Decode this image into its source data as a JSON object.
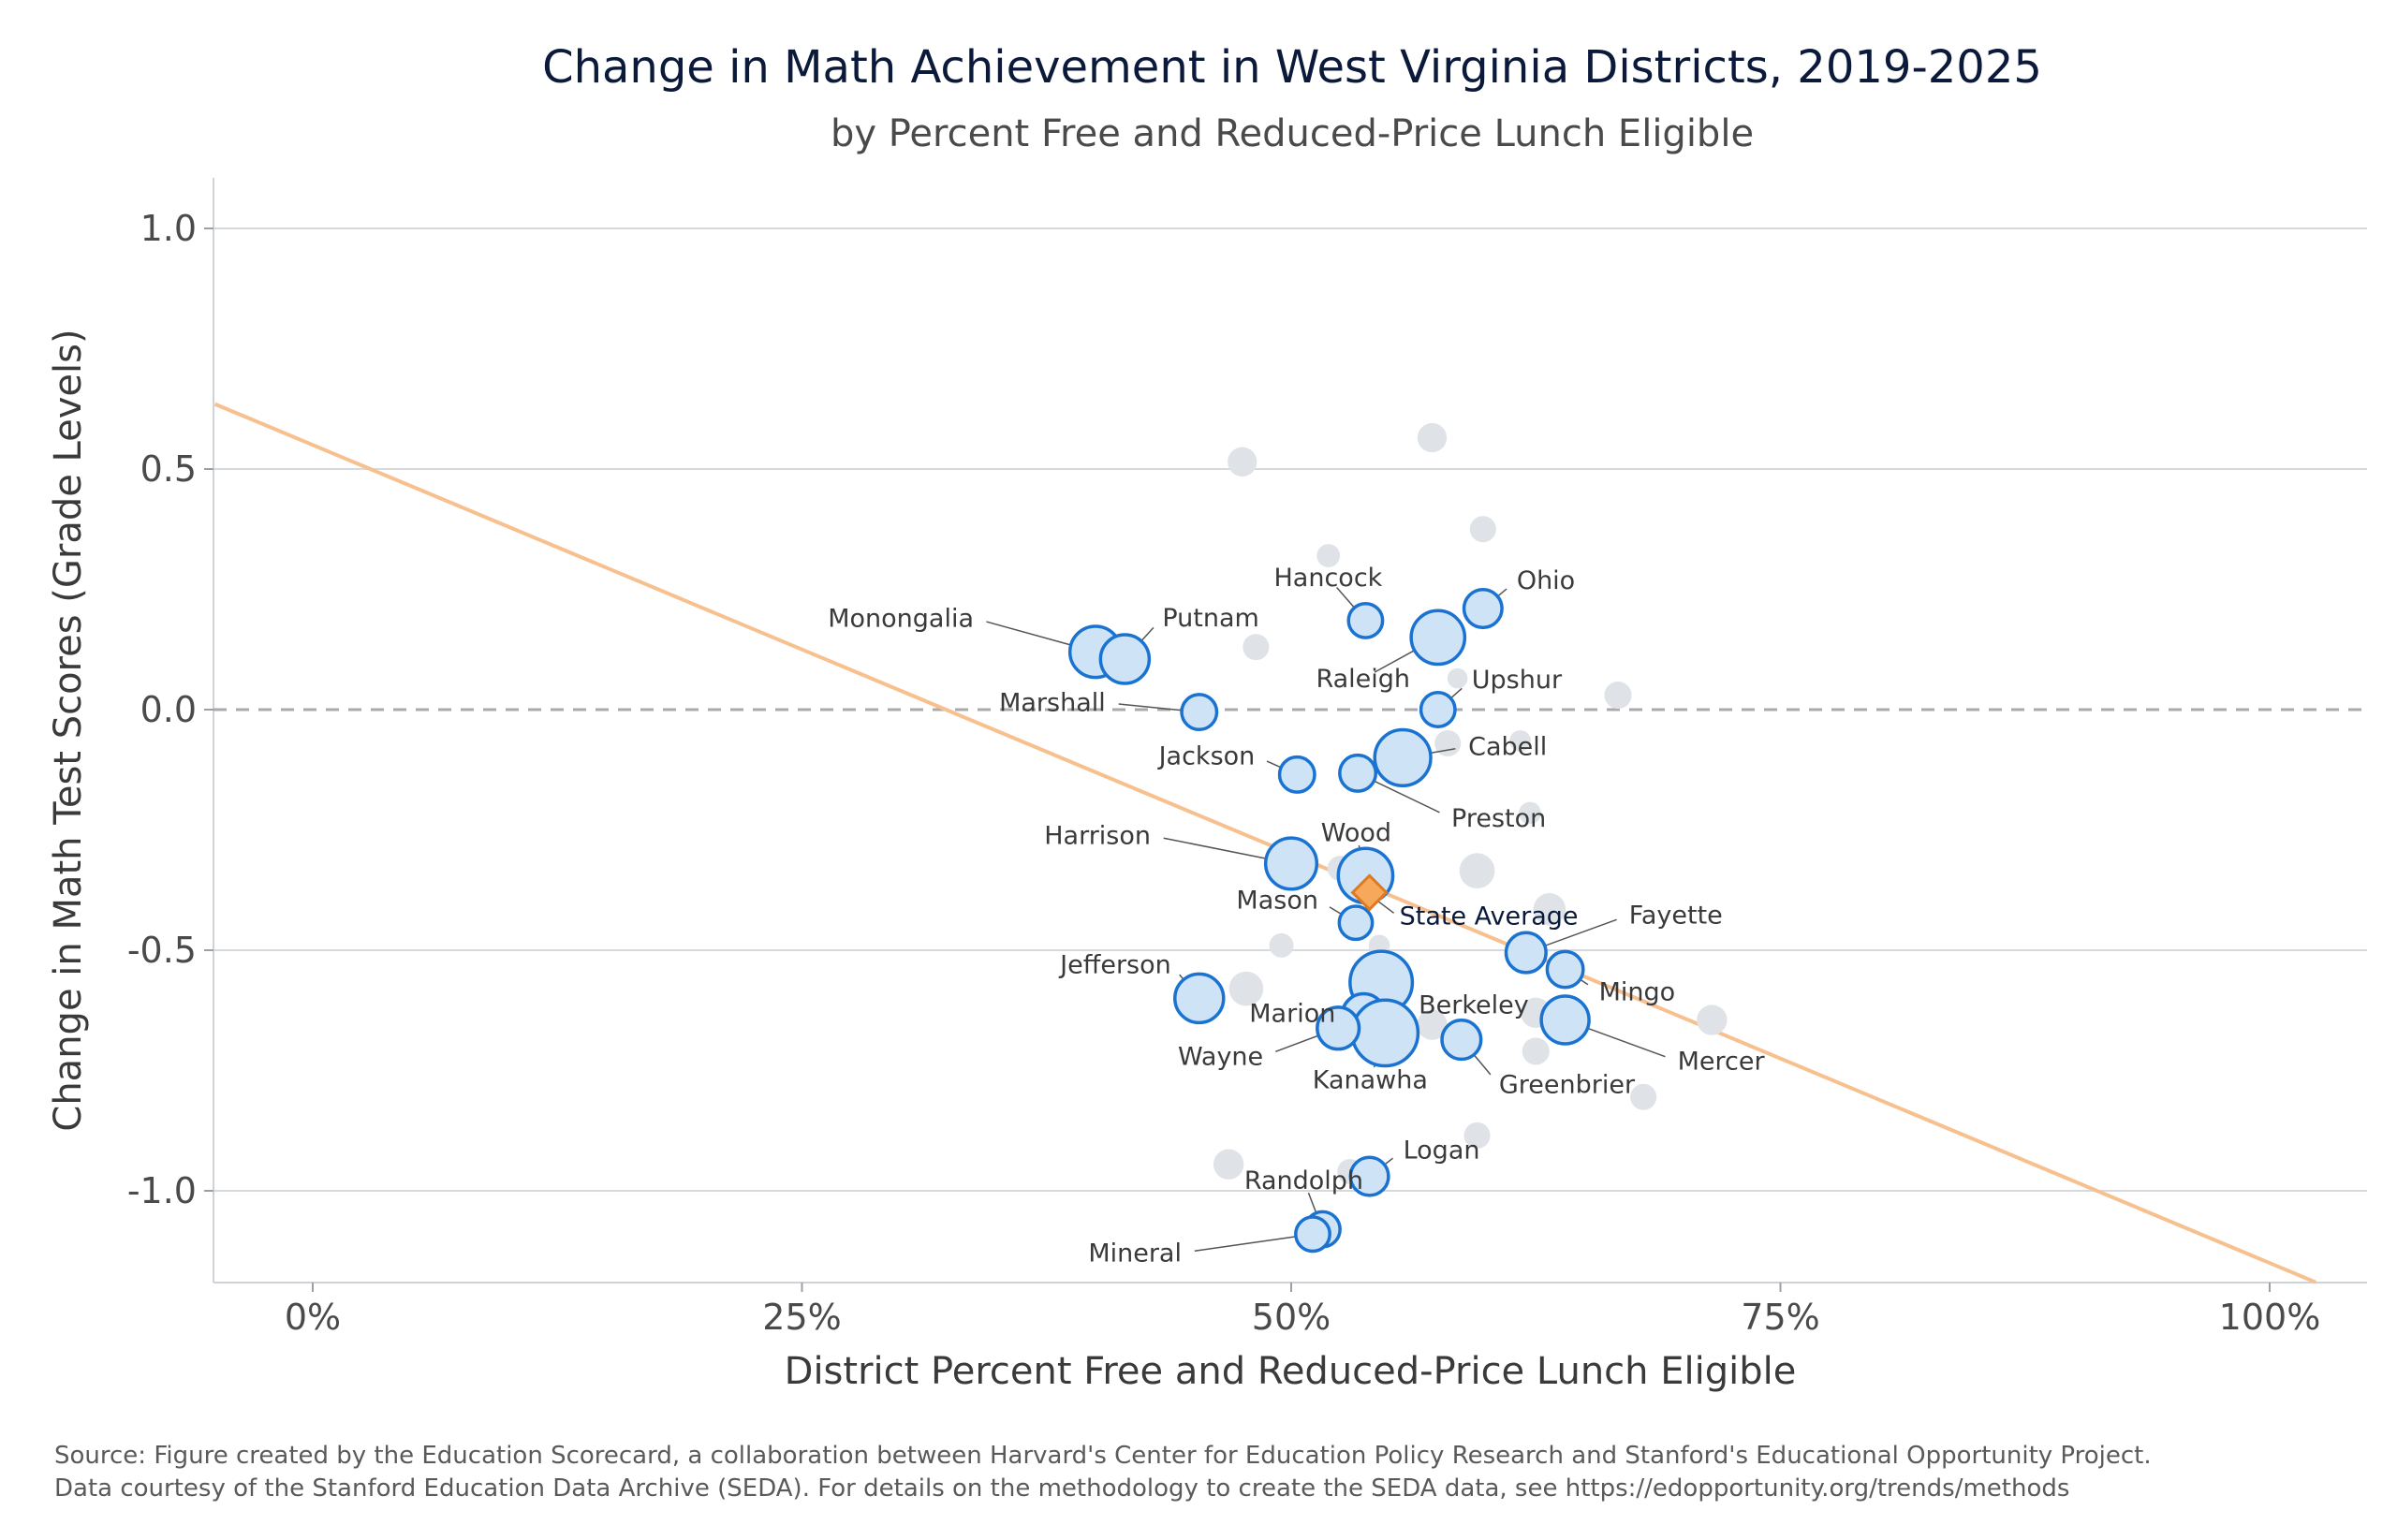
{
  "title": "Change in Math Achievement in West Virginia Districts, 2019-2025",
  "subtitle": "by Percent Free and Reduced-Price Lunch Eligible",
  "source_line1": "Source: Figure created by the Education Scorecard, a collaboration between Harvard's Center for Education Policy Research and Stanford's Educational Opportunity Project.",
  "source_line2": "Data courtesy of the Stanford Education Data Archive (SEDA). For details on the methodology to create the SEDA data, see https://edopportunity.org/trends/methods",
  "colors": {
    "highlight_fill": "#cfe3f7",
    "highlight_stroke": "#1a73d1",
    "other_fill": "#dfe3e8",
    "trend_line": "#f7c08f",
    "state_avg_fill": "#f6a95a",
    "state_avg_stroke": "#e07a1f",
    "grid": "#d6d9dd",
    "zero_line": "#aaaaaa",
    "axis_text": "#4a4a4a"
  },
  "chart_data": {
    "type": "scatter",
    "title": "Change in Math Achievement in West Virginia Districts, 2019-2025",
    "subtitle": "by Percent Free and Reduced-Price Lunch Eligible",
    "xlabel": "District Percent Free and Reduced-Price Lunch Eligible",
    "ylabel": "Change in Math Test Scores (Grade Levels)",
    "xlim": [
      -0.05,
      1.05
    ],
    "ylim": [
      -1.19,
      1.1
    ],
    "x_ticks": [
      0,
      0.25,
      0.5,
      0.75,
      1.0
    ],
    "x_tick_labels": [
      "0%",
      "25%",
      "50%",
      "75%",
      "100%"
    ],
    "y_ticks": [
      1.0,
      0.5,
      0.0,
      -0.5,
      -1.0
    ],
    "y_tick_labels": [
      "1.0",
      "0.5",
      "0.0",
      "-0.5",
      "-1.0"
    ],
    "grid": true,
    "reference_line_y": 0,
    "trend_line": {
      "intercept": 0.55,
      "slope": -1.7
    },
    "state_average": {
      "label": "State Average",
      "x": 0.54,
      "y": -0.38
    },
    "highlighted": [
      {
        "name": "Monongalia",
        "x": 0.4,
        "y": 0.12,
        "size": 1.05
      },
      {
        "name": "Putnam",
        "x": 0.415,
        "y": 0.105,
        "size": 1.0
      },
      {
        "name": "Marshall",
        "x": 0.453,
        "y": -0.005,
        "size": 0.72
      },
      {
        "name": "Hancock",
        "x": 0.538,
        "y": 0.185,
        "size": 0.7
      },
      {
        "name": "Ohio",
        "x": 0.598,
        "y": 0.21,
        "size": 0.78
      },
      {
        "name": "Raleigh",
        "x": 0.575,
        "y": 0.15,
        "size": 1.1
      },
      {
        "name": "Upshur",
        "x": 0.575,
        "y": 0.0,
        "size": 0.7
      },
      {
        "name": "Cabell",
        "x": 0.557,
        "y": -0.1,
        "size": 1.15
      },
      {
        "name": "Jackson",
        "x": 0.503,
        "y": -0.135,
        "size": 0.72
      },
      {
        "name": "Preston",
        "x": 0.534,
        "y": -0.132,
        "size": 0.74
      },
      {
        "name": "Harrison",
        "x": 0.5,
        "y": -0.32,
        "size": 1.05
      },
      {
        "name": "Wood",
        "x": 0.538,
        "y": -0.345,
        "size": 1.12
      },
      {
        "name": "Mason",
        "x": 0.533,
        "y": -0.443,
        "size": 0.68
      },
      {
        "name": "Fayette",
        "x": 0.62,
        "y": -0.505,
        "size": 0.82
      },
      {
        "name": "Mingo",
        "x": 0.64,
        "y": -0.54,
        "size": 0.74
      },
      {
        "name": "Jefferson",
        "x": 0.453,
        "y": -0.6,
        "size": 1.0
      },
      {
        "name": "Berkeley",
        "x": 0.546,
        "y": -0.567,
        "size": 1.28
      },
      {
        "name": "Marion",
        "x": 0.537,
        "y": -0.635,
        "size": 0.88
      },
      {
        "name": "Kanawha",
        "x": 0.548,
        "y": -0.672,
        "size": 1.35
      },
      {
        "name": "Wayne",
        "x": 0.524,
        "y": -0.662,
        "size": 0.86
      },
      {
        "name": "Greenbrier",
        "x": 0.587,
        "y": -0.686,
        "size": 0.8
      },
      {
        "name": "Mercer",
        "x": 0.64,
        "y": -0.645,
        "size": 0.98
      },
      {
        "name": "Logan",
        "x": 0.54,
        "y": -0.97,
        "size": 0.78
      },
      {
        "name": "Randolph",
        "x": 0.516,
        "y": -1.08,
        "size": 0.72
      },
      {
        "name": "Mineral",
        "x": 0.511,
        "y": -1.09,
        "size": 0.7
      }
    ],
    "other": [
      {
        "x": 0.475,
        "y": 0.515,
        "size": 0.58
      },
      {
        "x": 0.572,
        "y": 0.565,
        "size": 0.58
      },
      {
        "x": 0.598,
        "y": 0.375,
        "size": 0.52
      },
      {
        "x": 0.519,
        "y": 0.32,
        "size": 0.46
      },
      {
        "x": 0.482,
        "y": 0.13,
        "size": 0.52
      },
      {
        "x": 0.585,
        "y": 0.065,
        "size": 0.4
      },
      {
        "x": 0.667,
        "y": 0.03,
        "size": 0.54
      },
      {
        "x": 0.617,
        "y": -0.065,
        "size": 0.42
      },
      {
        "x": 0.58,
        "y": -0.07,
        "size": 0.52
      },
      {
        "x": 0.622,
        "y": -0.215,
        "size": 0.44
      },
      {
        "x": 0.525,
        "y": -0.33,
        "size": 0.5
      },
      {
        "x": 0.595,
        "y": -0.335,
        "size": 0.7
      },
      {
        "x": 0.632,
        "y": -0.415,
        "size": 0.64
      },
      {
        "x": 0.545,
        "y": -0.49,
        "size": 0.42
      },
      {
        "x": 0.495,
        "y": -0.49,
        "size": 0.48
      },
      {
        "x": 0.477,
        "y": -0.58,
        "size": 0.68
      },
      {
        "x": 0.572,
        "y": -0.655,
        "size": 0.6
      },
      {
        "x": 0.625,
        "y": -0.63,
        "size": 0.6
      },
      {
        "x": 0.715,
        "y": -0.645,
        "size": 0.6
      },
      {
        "x": 0.625,
        "y": -0.71,
        "size": 0.54
      },
      {
        "x": 0.68,
        "y": -0.805,
        "size": 0.52
      },
      {
        "x": 0.595,
        "y": -0.885,
        "size": 0.52
      },
      {
        "x": 0.468,
        "y": -0.945,
        "size": 0.6
      },
      {
        "x": 0.53,
        "y": -0.96,
        "size": 0.5
      }
    ]
  }
}
